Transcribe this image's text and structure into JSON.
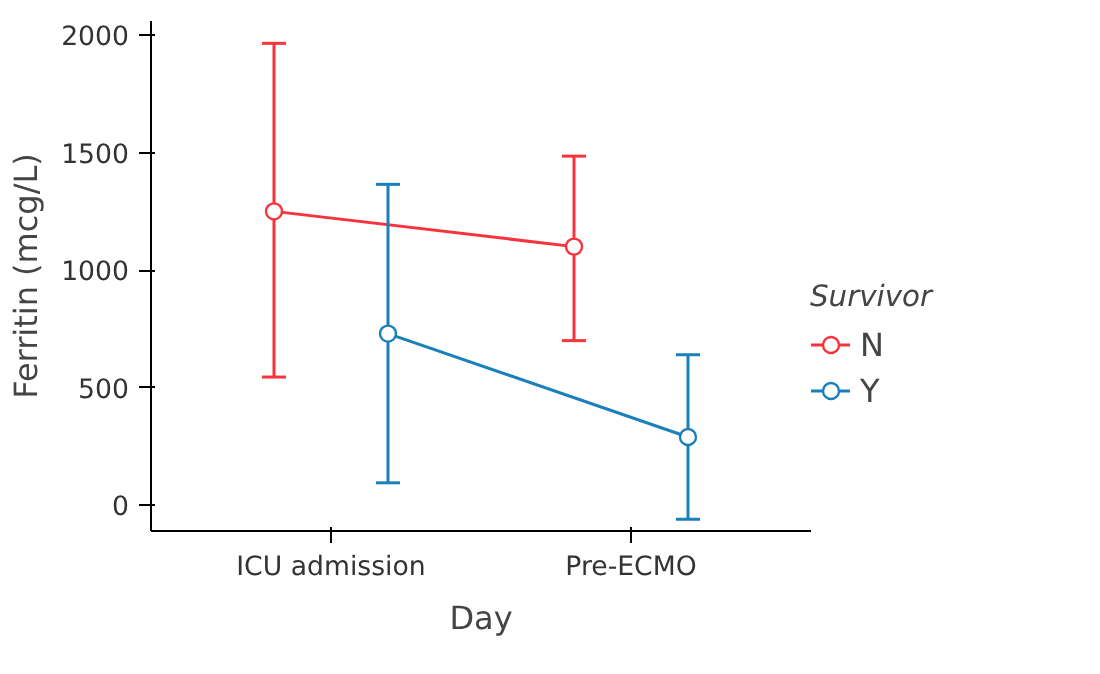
{
  "chart_data": {
    "type": "line",
    "xlabel": "Day",
    "ylabel": "Ferritin (mcg/L)",
    "legend_title": "Survivor",
    "categories": [
      "ICU admission",
      "Pre-ECMO"
    ],
    "series": [
      {
        "name": "N",
        "color": "#f8333c",
        "values": [
          1250,
          1100
        ],
        "errors": [
          [
            545,
            1965
          ],
          [
            700,
            1485
          ]
        ]
      },
      {
        "name": "Y",
        "color": "#1a80bb",
        "values": [
          730,
          290
        ],
        "errors": [
          [
            95,
            1365
          ],
          [
            -60,
            640
          ]
        ]
      }
    ],
    "ylim": [
      -110,
      2060
    ],
    "yticks": [
      0,
      500,
      1000,
      1500,
      2000
    ],
    "grid": false,
    "legend": "right",
    "marker": "circle",
    "line_style": "solid"
  }
}
